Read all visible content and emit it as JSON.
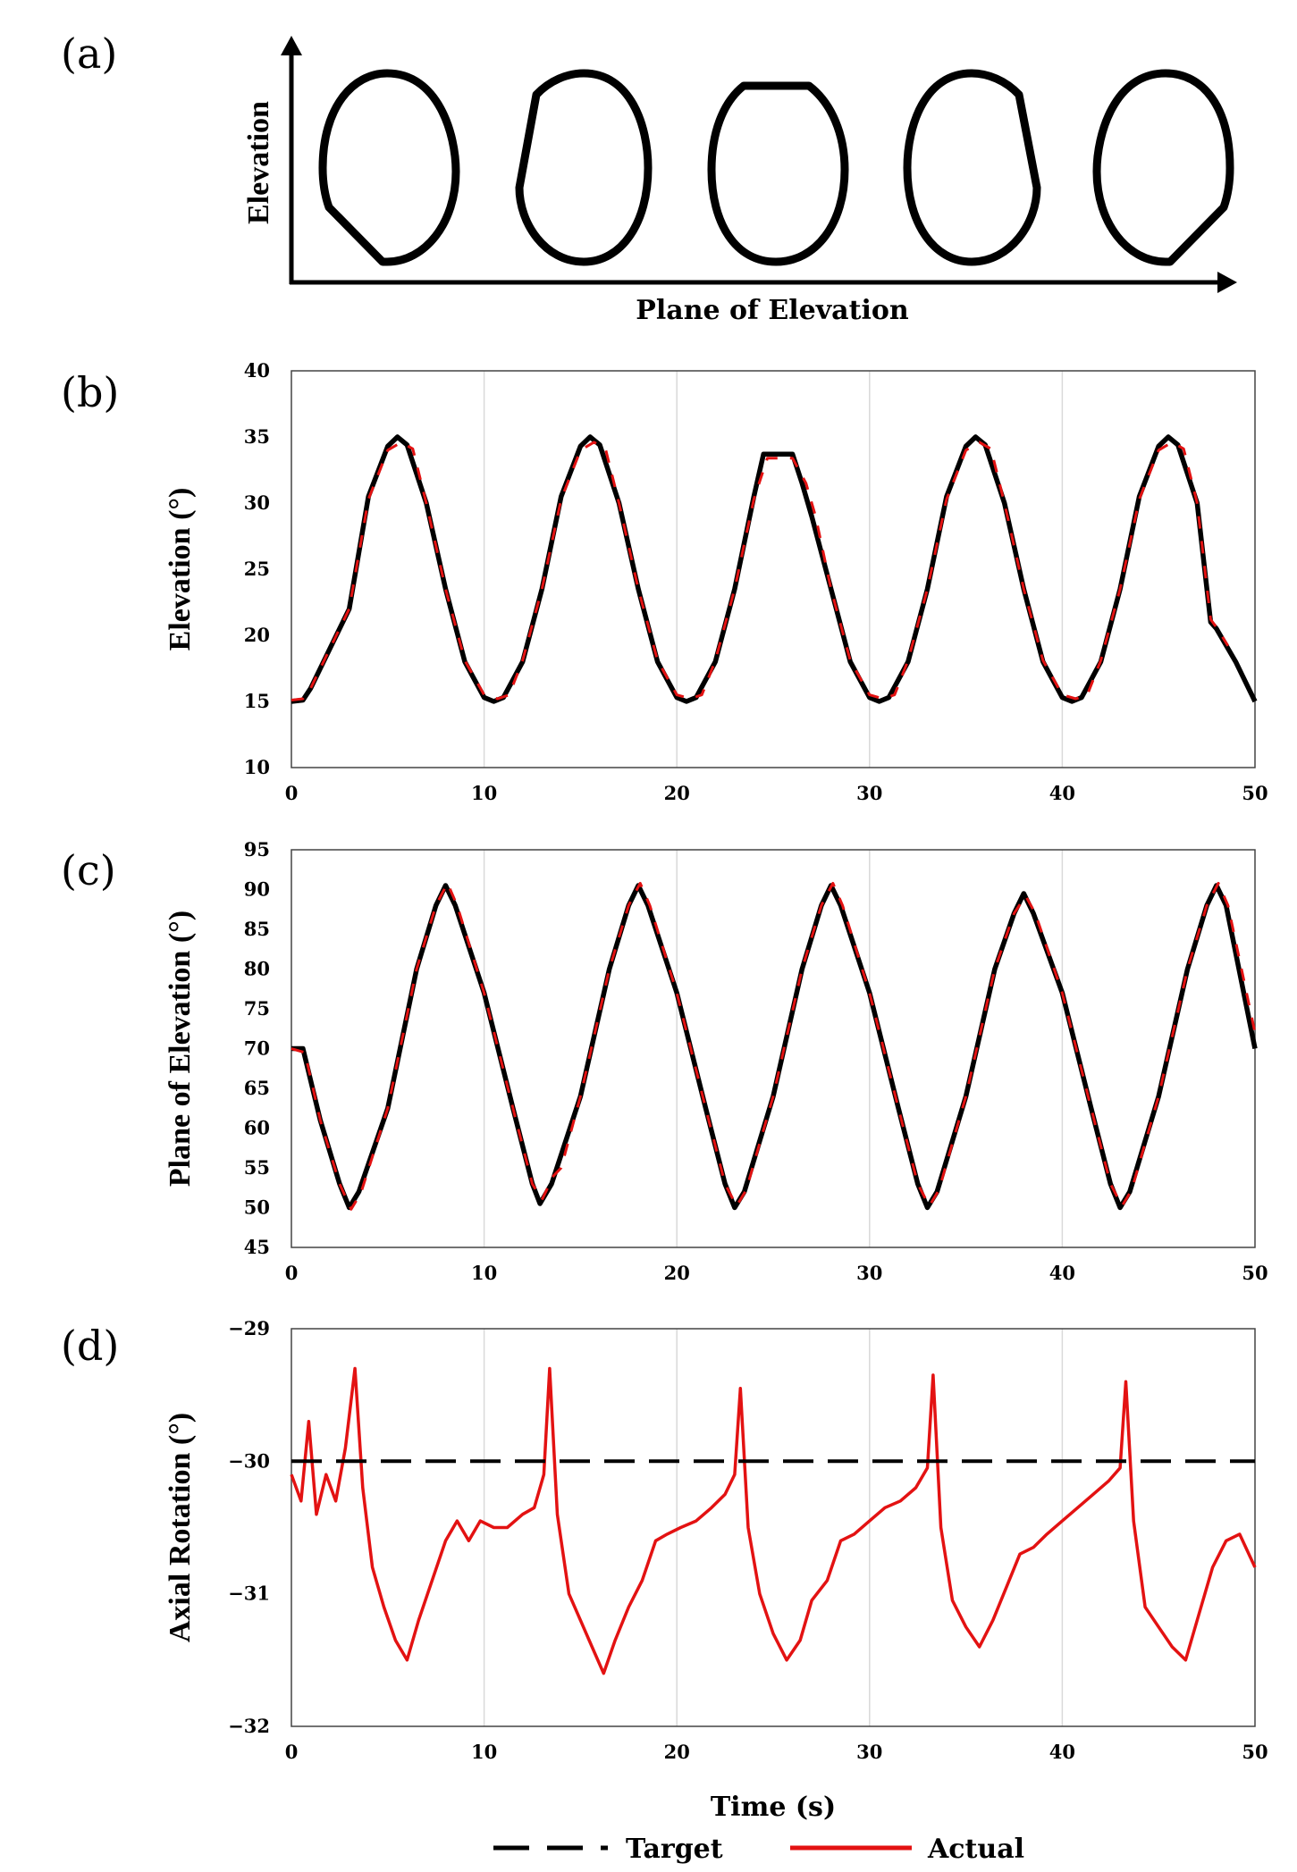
{
  "panels": {
    "a": {
      "label": "(a)",
      "ylabel": "Elevation",
      "xlabel": "Plane of Elevation",
      "shapes": [
        "lower-left-cut",
        "upper-left-cut",
        "flat-top",
        "upper-right-cut",
        "lower-right-cut"
      ]
    },
    "b": {
      "label": "(b)"
    },
    "c": {
      "label": "(c)"
    },
    "d": {
      "label": "(d)"
    }
  },
  "chart_data": [
    {
      "type": "line",
      "panel": "b",
      "ylabel": "Elevation (°)",
      "xlim": [
        0,
        50
      ],
      "ylim": [
        10,
        40
      ],
      "xticks": [
        "0",
        "10",
        "20",
        "30",
        "40",
        "50"
      ],
      "yticks": [
        "10",
        "15",
        "20",
        "25",
        "30",
        "35",
        "40"
      ],
      "grid": true,
      "series": [
        {
          "name": "Target",
          "x": [
            0,
            0.6,
            1,
            2,
            3,
            4,
            5,
            5.5,
            6,
            7,
            8,
            9,
            10,
            10.5,
            11,
            12,
            13,
            14,
            15,
            15.5,
            16,
            17,
            18,
            19,
            20,
            20.5,
            21,
            22,
            23,
            24,
            24.5,
            26,
            26.5,
            27,
            28,
            29,
            30,
            30.5,
            31,
            32,
            33,
            34,
            35,
            35.5,
            36,
            37,
            38,
            39,
            40,
            40.5,
            41,
            42,
            43,
            44,
            45,
            45.5,
            46,
            47,
            47.7,
            48,
            49,
            50
          ],
          "y": [
            15,
            15.1,
            16,
            19,
            22,
            30.5,
            34.3,
            35,
            34.4,
            30,
            23.5,
            18,
            15.3,
            15,
            15.3,
            18,
            23.5,
            30.5,
            34.3,
            35,
            34.4,
            30,
            23.5,
            18,
            15.3,
            15,
            15.3,
            18,
            23.5,
            30.5,
            33.7,
            33.7,
            31.5,
            29,
            23.5,
            18,
            15.3,
            15,
            15.3,
            18,
            23.5,
            30.5,
            34.3,
            35,
            34.4,
            30,
            23.5,
            18,
            15.3,
            15,
            15.3,
            18,
            23.5,
            30.5,
            34.3,
            35,
            34.4,
            30,
            21,
            20.5,
            18,
            15
          ]
        },
        {
          "name": "Actual",
          "x": [
            0,
            0.6,
            1,
            2,
            3,
            4,
            5,
            5.7,
            6.3,
            7,
            8,
            9,
            10,
            10.7,
            11.3,
            12,
            13,
            14,
            15,
            15.7,
            16.3,
            17,
            18,
            19,
            20,
            20.7,
            21.3,
            22,
            23,
            24,
            24.7,
            26,
            26.7,
            27.2,
            28,
            29,
            30,
            30.7,
            31.3,
            32,
            33,
            34,
            35,
            35.7,
            36.3,
            37,
            38,
            39,
            40,
            40.7,
            41.3,
            42,
            43,
            44,
            45,
            45.7,
            46.3,
            47,
            47.7,
            48,
            48.6
          ],
          "y": [
            15.1,
            15.2,
            16,
            19,
            22,
            30.3,
            34,
            34.6,
            34.1,
            30,
            23.5,
            18.1,
            15.5,
            15.2,
            15.5,
            18.1,
            23.5,
            30.3,
            34,
            34.6,
            34.1,
            30,
            23.5,
            18.1,
            15.5,
            15.2,
            15.5,
            18.1,
            23.5,
            30.3,
            33.4,
            33.4,
            31.5,
            29,
            23.5,
            18.1,
            15.5,
            15.2,
            15.5,
            18.1,
            23.5,
            30.3,
            34,
            34.6,
            34.1,
            30,
            23.5,
            18.1,
            15.5,
            15.2,
            15.5,
            18.1,
            23.5,
            30.3,
            34,
            34.6,
            34.1,
            30,
            21.2,
            20.6,
            19.2
          ]
        }
      ]
    },
    {
      "type": "line",
      "panel": "c",
      "ylabel": "Plane of Elevation (°)",
      "xlim": [
        0,
        50
      ],
      "ylim": [
        45,
        95
      ],
      "xticks": [
        "0",
        "10",
        "20",
        "30",
        "40",
        "50"
      ],
      "yticks": [
        "45",
        "50",
        "55",
        "60",
        "65",
        "70",
        "75",
        "80",
        "85",
        "90",
        "95"
      ],
      "grid": true,
      "series": [
        {
          "name": "Target",
          "x": [
            0,
            0.6,
            1.5,
            2.5,
            3,
            3.5,
            5,
            6.5,
            7.5,
            8,
            8.5,
            10,
            11.5,
            12.5,
            12.9,
            13.5,
            15,
            16.5,
            17.5,
            18,
            18.5,
            20,
            21.5,
            22.5,
            23,
            23.5,
            25,
            26.5,
            27.5,
            28,
            28.5,
            30,
            31.5,
            32.5,
            33,
            33.5,
            35,
            36.5,
            37.5,
            38,
            38.5,
            40,
            41.5,
            42.5,
            43,
            43.5,
            45,
            46.5,
            47.5,
            48,
            48.5,
            50
          ],
          "y": [
            70,
            70,
            61,
            53,
            50,
            52,
            62.5,
            80,
            88,
            90.5,
            88,
            77,
            62.5,
            53,
            50.5,
            53,
            64,
            80,
            88,
            90.5,
            88,
            77,
            62.5,
            53,
            50,
            52,
            64,
            80,
            88,
            90.5,
            88,
            77,
            62.5,
            53,
            50,
            52,
            64,
            80,
            87,
            89.5,
            87,
            77,
            62.5,
            53,
            50,
            52,
            64,
            80,
            88,
            90.5,
            88,
            70
          ]
        },
        {
          "name": "Actual",
          "x": [
            0,
            0.7,
            1.5,
            2.5,
            3.1,
            3.6,
            5,
            6.5,
            7.5,
            8.1,
            8.6,
            10,
            11.5,
            12.5,
            13,
            13.6,
            14,
            15,
            16.5,
            17.5,
            18.1,
            18.6,
            20,
            21.5,
            22.5,
            23.1,
            23.6,
            25,
            26.5,
            27.5,
            28.1,
            28.6,
            30,
            31.5,
            32.5,
            33.1,
            33.6,
            35,
            36.5,
            37.5,
            38.1,
            38.6,
            40,
            41.5,
            42.5,
            43.1,
            43.6,
            45,
            46.5,
            47.5,
            48.1,
            48.6,
            50
          ],
          "y": [
            70,
            69.5,
            61,
            53,
            49.8,
            51.8,
            62.5,
            80,
            88,
            90.8,
            88,
            77,
            62.5,
            53,
            51,
            54,
            55,
            64,
            80,
            88,
            90.8,
            88,
            77,
            62.5,
            53,
            50.2,
            52.2,
            64,
            80,
            88,
            90.8,
            88,
            77,
            62.5,
            53,
            50.2,
            52.2,
            64,
            80,
            87,
            89.2,
            87,
            77,
            62.5,
            53,
            50.2,
            52.2,
            64,
            80,
            88,
            90.8,
            88,
            72
          ]
        }
      ]
    },
    {
      "type": "line",
      "panel": "d",
      "ylabel": "Axial Rotation (°)",
      "xlabel": "Time (s)",
      "xlim": [
        0,
        50
      ],
      "ylim": [
        -32,
        -29
      ],
      "xticks": [
        "0",
        "10",
        "20",
        "30",
        "40",
        "50"
      ],
      "yticks": [
        "−32",
        "−31",
        "−30",
        "−29"
      ],
      "grid": true,
      "series": [
        {
          "name": "Target",
          "x": [
            0,
            50
          ],
          "y": [
            -30,
            -30
          ]
        },
        {
          "name": "Actual",
          "x": [
            0,
            0.5,
            0.9,
            1.3,
            1.8,
            2.3,
            2.8,
            3.3,
            3.7,
            4.2,
            4.8,
            5.4,
            6,
            6.6,
            7.3,
            8,
            8.6,
            9.2,
            9.8,
            10.5,
            11.2,
            12,
            12.6,
            13.1,
            13.4,
            13.8,
            14.4,
            15,
            15.6,
            16.2,
            16.8,
            17.5,
            18.2,
            18.9,
            19.5,
            20.2,
            21,
            21.8,
            22.5,
            23,
            23.3,
            23.7,
            24.3,
            25,
            25.7,
            26.4,
            27,
            27.8,
            28.5,
            29.2,
            30,
            30.8,
            31.6,
            32.4,
            33,
            33.3,
            33.7,
            34.3,
            35,
            35.7,
            36.4,
            37.1,
            37.8,
            38.5,
            39.2,
            40,
            40.8,
            41.6,
            42.4,
            43,
            43.3,
            43.7,
            44.3,
            45,
            45.7,
            46.4,
            47,
            47.8,
            48.5,
            49.2,
            50
          ],
          "y": [
            -30.1,
            -30.3,
            -29.7,
            -30.4,
            -30.1,
            -30.3,
            -29.9,
            -29.3,
            -30.2,
            -30.8,
            -31.1,
            -31.35,
            -31.5,
            -31.2,
            -30.9,
            -30.6,
            -30.45,
            -30.6,
            -30.45,
            -30.5,
            -30.5,
            -30.4,
            -30.35,
            -30.1,
            -29.3,
            -30.4,
            -31.0,
            -31.2,
            -31.4,
            -31.6,
            -31.35,
            -31.1,
            -30.9,
            -30.6,
            -30.55,
            -30.5,
            -30.45,
            -30.35,
            -30.25,
            -30.1,
            -29.45,
            -30.5,
            -31.0,
            -31.3,
            -31.5,
            -31.35,
            -31.05,
            -30.9,
            -30.6,
            -30.55,
            -30.45,
            -30.35,
            -30.3,
            -30.2,
            -30.05,
            -29.35,
            -30.5,
            -31.05,
            -31.25,
            -31.4,
            -31.2,
            -30.95,
            -30.7,
            -30.65,
            -30.55,
            -30.45,
            -30.35,
            -30.25,
            -30.15,
            -30.05,
            -29.4,
            -30.45,
            -31.1,
            -31.25,
            -31.4,
            -31.5,
            -31.2,
            -30.8,
            -30.6,
            -30.55,
            -30.8
          ]
        }
      ]
    }
  ],
  "legend": {
    "target_label": "Target",
    "actual_label": "Actual"
  },
  "colors": {
    "target": "#000000",
    "actual": "#e31212",
    "grid": "#d9d9d9",
    "axis": "#000000"
  }
}
